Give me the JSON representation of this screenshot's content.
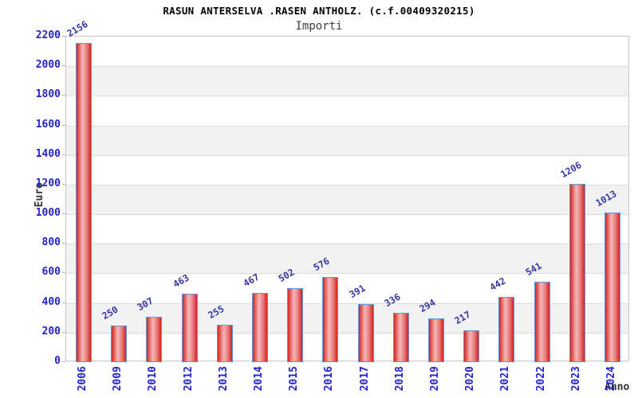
{
  "header": {
    "title": "RASUN ANTERSELVA .RASEN ANTHOLZ. (c.f.00409320215)",
    "subtitle": "Importi"
  },
  "chart_data": {
    "type": "bar",
    "title": "RASUN ANTERSELVA .RASEN ANTHOLZ. (c.f.00409320215)",
    "subtitle": "Importi",
    "xlabel": "Anno",
    "ylabel": "Euro",
    "categories": [
      "2006",
      "2009",
      "2010",
      "2012",
      "2013",
      "2014",
      "2015",
      "2016",
      "2017",
      "2018",
      "2019",
      "2020",
      "2021",
      "2022",
      "2023",
      "2024"
    ],
    "values": [
      2156,
      250,
      307,
      463,
      255,
      467,
      502,
      576,
      391,
      336,
      294,
      217,
      442,
      541,
      1206,
      1013
    ],
    "ylim": [
      0,
      2200
    ],
    "ytick_interval": 200,
    "ytick_labels": [
      "0",
      "200",
      "400",
      "600",
      "800",
      "1000",
      "1200",
      "1400",
      "1600",
      "1800",
      "2000",
      "2200"
    ],
    "grid": "horizontal-bands-alternating",
    "legend": "none",
    "colors": {
      "bar_fill_edge": "#d42222",
      "bar_fill_center": "#f5b8b8",
      "bar_border": "#5b9bd5",
      "axis_tick_label": "#2323cc",
      "value_label": "#3434a6",
      "band_gray": "#f2f2f2",
      "gridline": "#dcdcdc",
      "plot_border": "#c6c6c6",
      "title_color": "#000000",
      "subtitle_color": "#3f3f3f",
      "axis_title_color": "#333333"
    }
  }
}
